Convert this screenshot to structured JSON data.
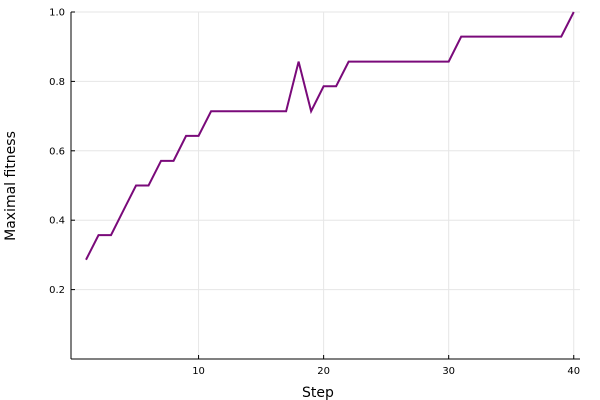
{
  "chart_data": {
    "type": "line",
    "title": "",
    "xlabel": "Step",
    "ylabel": "Maximal fitness",
    "xlim": [
      -0.2,
      40.5
    ],
    "ylim": [
      0.0,
      1.0
    ],
    "xticks": [
      10,
      20,
      30,
      40
    ],
    "yticks": [
      0.2,
      0.4,
      0.6,
      0.8,
      1.0
    ],
    "xtick_labels": [
      "10",
      "20",
      "30",
      "40"
    ],
    "ytick_labels": [
      "0.2",
      "0.4",
      "0.6",
      "0.8",
      "1.0"
    ],
    "grid": true,
    "legend": "none",
    "colors": {
      "line": "#7a0a7a",
      "grid": "#e6e6e6",
      "axis": "#000000"
    },
    "series": [
      {
        "x": [
          1,
          2,
          3,
          4,
          5,
          6,
          7,
          8,
          9,
          10,
          11,
          12,
          13,
          14,
          15,
          16,
          17,
          18,
          19,
          20,
          21,
          22,
          23,
          24,
          25,
          26,
          27,
          28,
          29,
          30,
          31,
          32,
          33,
          34,
          35,
          36,
          37,
          38,
          39,
          40
        ],
        "values": [
          0.286,
          0.357,
          0.357,
          0.429,
          0.5,
          0.5,
          0.571,
          0.571,
          0.643,
          0.643,
          0.714,
          0.714,
          0.714,
          0.714,
          0.714,
          0.714,
          0.714,
          0.857,
          0.714,
          0.786,
          0.786,
          0.857,
          0.857,
          0.857,
          0.857,
          0.857,
          0.857,
          0.857,
          0.857,
          0.857,
          0.929,
          0.929,
          0.929,
          0.929,
          0.929,
          0.929,
          0.929,
          0.929,
          0.929,
          1.0
        ]
      }
    ]
  }
}
